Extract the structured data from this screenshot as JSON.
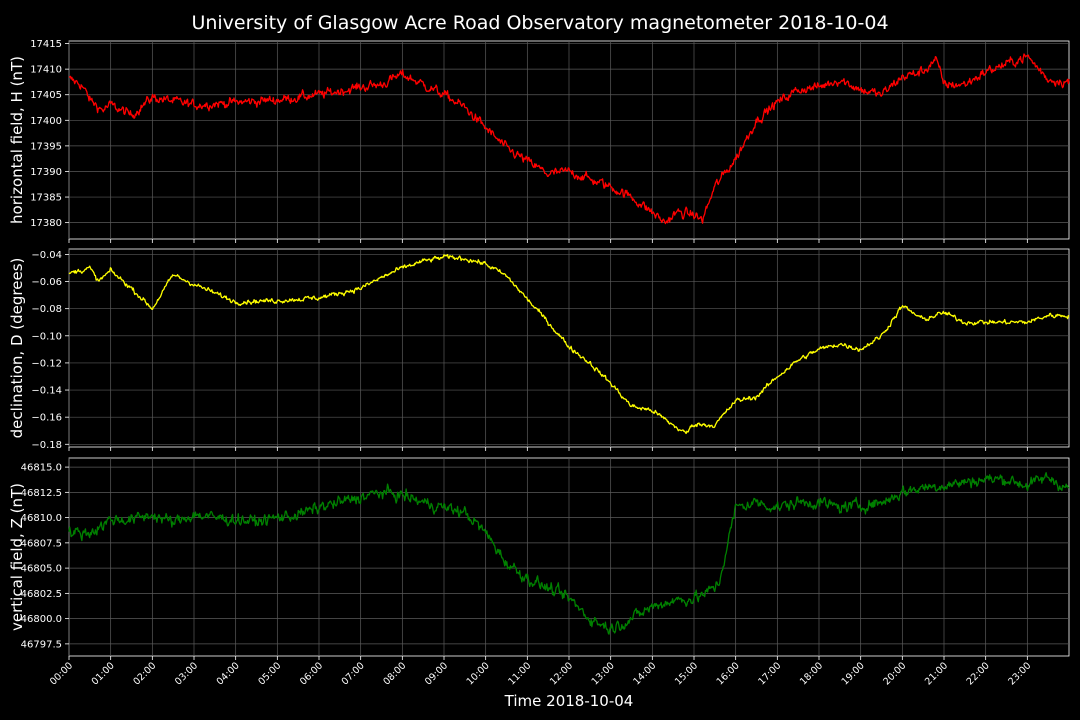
{
  "chart_data": {
    "type": "line",
    "title": "University of Glasgow Acre Road Observatory magnetometer 2018-10-04",
    "xlabel": "Time 2018-10-04",
    "xlim": [
      "00:00",
      "24:00"
    ],
    "x_ticks": [
      "00:00",
      "01:00",
      "02:00",
      "03:00",
      "04:00",
      "05:00",
      "06:00",
      "07:00",
      "08:00",
      "09:00",
      "10:00",
      "11:00",
      "12:00",
      "13:00",
      "14:00",
      "15:00",
      "16:00",
      "17:00",
      "18:00",
      "19:00",
      "20:00",
      "21:00",
      "22:00",
      "23:00"
    ],
    "grid": true,
    "background": "#000000",
    "panels": [
      {
        "ylabel": "horizontal field, H (nT)",
        "color": "#ff0000",
        "ylim": [
          17376.8,
          17415.5
        ],
        "y_ticks": [
          17380,
          17385,
          17390,
          17395,
          17400,
          17405,
          17410,
          17415
        ],
        "tick_labels": [
          "17380",
          "17385",
          "17390",
          "17395",
          "17400",
          "17405",
          "17410",
          "17415"
        ],
        "noise": 0.8,
        "x_hours": [
          0,
          0.3,
          0.5,
          0.8,
          1,
          1.5,
          2,
          3,
          4,
          5,
          6,
          7,
          7.5,
          8,
          8.5,
          9,
          9.5,
          10,
          10.5,
          11,
          11.5,
          12,
          12.5,
          13,
          13.5,
          14,
          14.3,
          14.6,
          15,
          15.2,
          15.5,
          16,
          16.5,
          17,
          17.5,
          18,
          18.5,
          19,
          19.5,
          20,
          20.5,
          20.8,
          21,
          21.5,
          22,
          22.5,
          23,
          23.5,
          24
        ],
        "values": [
          17408,
          17407,
          17404,
          17402,
          17403,
          17401,
          17404.5,
          17403,
          17403.5,
          17404,
          17405,
          17406.5,
          17407,
          17409,
          17407,
          17405,
          17402.5,
          17398.5,
          17394.5,
          17392,
          17389.5,
          17390,
          17388.5,
          17387,
          17385,
          17382,
          17380,
          17382,
          17381.5,
          17380.5,
          17387,
          17392.5,
          17400,
          17403.5,
          17406,
          17406.5,
          17408,
          17406,
          17405,
          17408.5,
          17409.5,
          17412,
          17407,
          17407,
          17409.5,
          17411,
          17412.5,
          17408,
          17407.5
        ]
      },
      {
        "ylabel": "declination, D (degrees)",
        "color": "#ffff00",
        "ylim": [
          -0.182,
          -0.036
        ],
        "y_ticks": [
          -0.18,
          -0.16,
          -0.14,
          -0.12,
          -0.1,
          -0.08,
          -0.06,
          -0.04
        ],
        "tick_labels": [
          "−0.18",
          "−0.16",
          "−0.14",
          "−0.12",
          "−0.10",
          "−0.08",
          "−0.06",
          "−0.04"
        ],
        "noise": 0.0015,
        "x_hours": [
          0,
          0.5,
          0.7,
          1,
          1.5,
          2,
          2.5,
          3,
          4,
          5,
          6,
          7,
          7.5,
          8,
          8.5,
          9,
          9.5,
          10,
          10.5,
          11,
          11.5,
          12,
          12.5,
          13,
          13.5,
          14,
          14.5,
          14.8,
          15,
          15.5,
          16,
          16.5,
          17,
          17.5,
          18,
          18.5,
          19,
          19.5,
          20,
          20.5,
          21,
          21.5,
          22,
          22.5,
          23,
          23.5,
          24
        ],
        "values": [
          -0.054,
          -0.05,
          -0.06,
          -0.052,
          -0.065,
          -0.08,
          -0.055,
          -0.062,
          -0.075,
          -0.074,
          -0.072,
          -0.065,
          -0.057,
          -0.05,
          -0.045,
          -0.042,
          -0.043,
          -0.047,
          -0.056,
          -0.073,
          -0.09,
          -0.108,
          -0.12,
          -0.135,
          -0.152,
          -0.155,
          -0.166,
          -0.172,
          -0.165,
          -0.166,
          -0.148,
          -0.145,
          -0.13,
          -0.118,
          -0.11,
          -0.106,
          -0.11,
          -0.1,
          -0.078,
          -0.088,
          -0.083,
          -0.09,
          -0.09,
          -0.09,
          -0.09,
          -0.085,
          -0.085
        ]
      },
      {
        "ylabel": "vertical field, Z (nT)",
        "color": "#008000",
        "ylim": [
          46796.3,
          46815.9
        ],
        "y_ticks": [
          46797.5,
          46800.0,
          46802.5,
          46805.0,
          46807.5,
          46810.0,
          46812.5,
          46815.0
        ],
        "tick_labels": [
          "46797.5",
          "46800.0",
          "46802.5",
          "46805.0",
          "46807.5",
          "46810.0",
          "46812.5",
          "46815.0"
        ],
        "noise": 0.5,
        "x_hours": [
          0,
          0.5,
          1,
          1.5,
          2,
          2.5,
          3,
          3.5,
          4,
          4.5,
          5,
          5.5,
          6,
          6.5,
          7,
          7.5,
          8,
          8.5,
          9,
          9.5,
          10,
          10.5,
          11,
          11.5,
          12,
          12.5,
          13,
          13.5,
          14,
          14.5,
          15,
          15.3,
          15.6,
          16,
          16.5,
          17,
          17.5,
          18,
          18.5,
          19,
          19.5,
          20,
          20.5,
          21,
          21.5,
          22,
          22.5,
          23,
          23.5,
          24
        ],
        "values": [
          46808.5,
          46808.5,
          46809.8,
          46809.8,
          46810.3,
          46809.5,
          46810.3,
          46810.0,
          46809.8,
          46809.6,
          46810.0,
          46810.3,
          46811.0,
          46811.5,
          46812.0,
          46812.5,
          46812.2,
          46811.5,
          46811.0,
          46810.5,
          46808.5,
          46805.5,
          46804.0,
          46803.0,
          46802.0,
          46800.0,
          46799.0,
          46800.0,
          46801.2,
          46801.8,
          46802.0,
          46802.5,
          46803.5,
          46811.0,
          46811.5,
          46811.0,
          46811.5,
          46811.5,
          46811.0,
          46811.2,
          46811.5,
          46812.5,
          46813.0,
          46813.2,
          46813.5,
          46813.8,
          46813.8,
          46813.2,
          46814.0,
          46812.8
        ]
      }
    ]
  }
}
